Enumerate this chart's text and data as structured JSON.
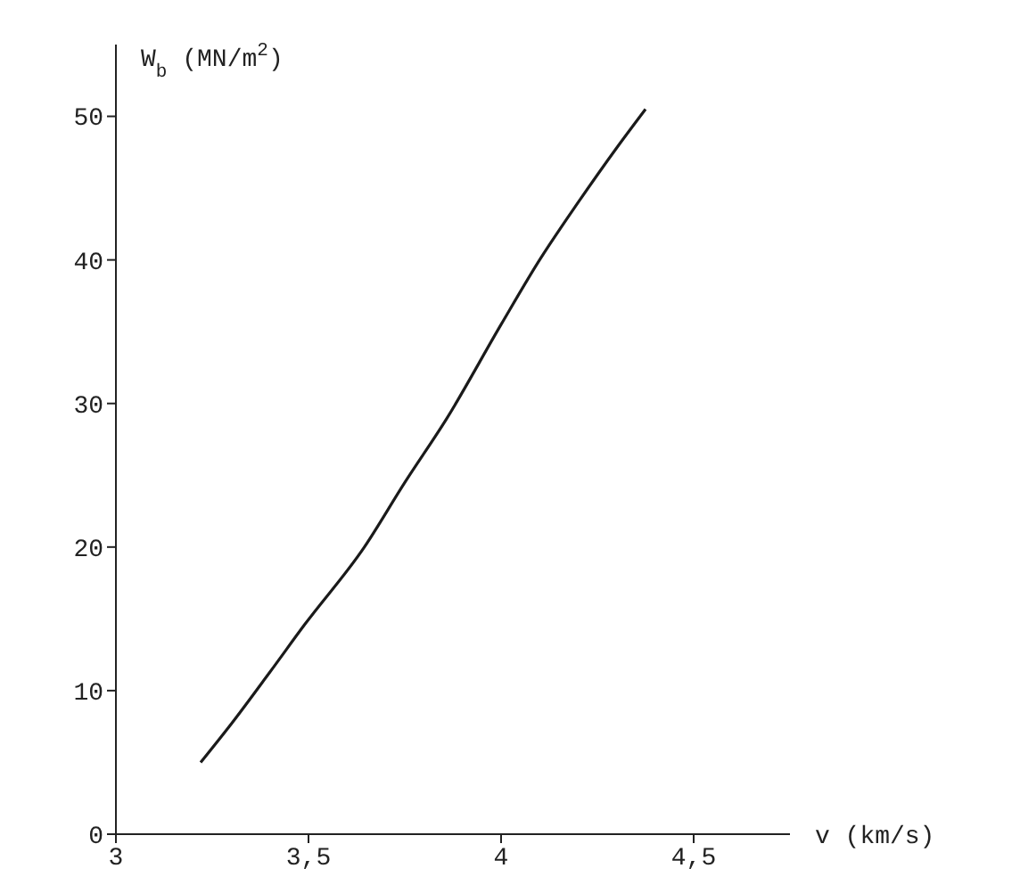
{
  "chart_data": {
    "type": "line",
    "xlabel": "v (km/s)",
    "ylabel": "W$_{b}$ (MN/m$^{2}$)",
    "x": [
      3.22,
      3.3,
      3.4,
      3.49,
      3.645,
      3.75,
      3.86,
      4,
      4.1,
      4.2,
      4.3,
      4.375
    ],
    "series": [
      {
        "color": "#1a1a1a",
        "values": [
          5,
          7.7,
          11.3,
          14.6,
          20,
          24.5,
          29,
          35.5,
          40,
          44,
          47.8,
          50.5
        ]
      }
    ],
    "xlim": [
      3,
      4.75
    ],
    "ylim": [
      0,
      55
    ],
    "xticks": [
      3,
      {
        "value": 3.5,
        "label": "3,5"
      },
      4,
      {
        "value": 4.5,
        "label": "4,5"
      }
    ],
    "yticks": [
      0,
      10,
      20,
      30,
      40,
      50
    ],
    "grid": false,
    "legend": false,
    "marker": "none",
    "line_style": "solid"
  }
}
